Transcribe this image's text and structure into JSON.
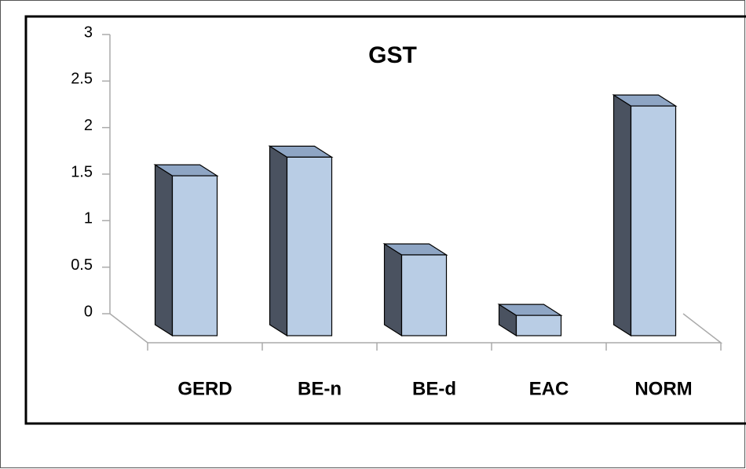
{
  "chart_data": {
    "type": "bar3d",
    "title": "GST",
    "categories": [
      "GERD",
      "BE-n",
      "BE-d",
      "EAC",
      "NORM"
    ],
    "values": [
      1.6,
      1.8,
      0.75,
      0.1,
      2.35
    ],
    "color": "#b9cde5",
    "ylim": [
      0,
      3
    ],
    "yticks": [
      0,
      0.5,
      1,
      1.5,
      2,
      2.5,
      3
    ]
  }
}
